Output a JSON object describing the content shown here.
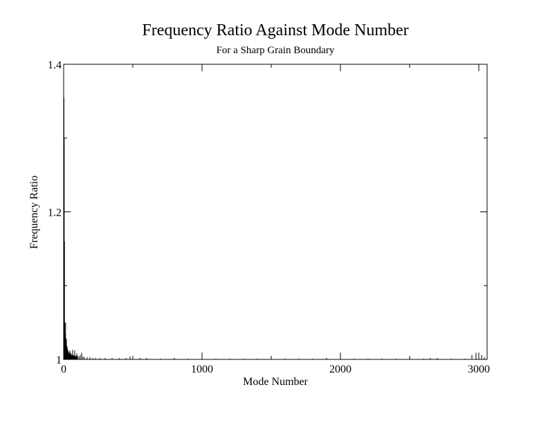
{
  "chart_data": {
    "type": "bar",
    "title": "Frequency Ratio Against Mode Number",
    "subtitle": "For a Sharp Grain Boundary",
    "xlabel": "Mode Number",
    "ylabel": "Frequency Ratio",
    "xlim": [
      0,
      3060
    ],
    "ylim": [
      1,
      1.4
    ],
    "x_major_ticks": [
      0,
      1000,
      2000,
      3000
    ],
    "x_minor_ticks": [
      500,
      1500,
      2500
    ],
    "y_major_ticks": [
      1,
      1.2,
      1.4
    ],
    "y_minor_ticks": [
      1.1,
      1.3
    ],
    "x_tick_labels": [
      "0",
      "1000",
      "2000",
      "3000"
    ],
    "y_tick_labels": [
      "1",
      "1.2",
      "1.4"
    ],
    "grid": false,
    "legend": "none",
    "bar_color": "#000000",
    "series": [
      {
        "x": [
          2,
          4,
          6,
          8,
          10,
          12,
          14,
          16,
          18,
          20,
          24,
          28,
          32,
          36,
          40,
          45,
          50,
          55,
          60,
          65,
          70,
          75,
          80,
          85,
          90,
          95,
          100,
          110,
          120,
          130,
          140,
          150,
          170,
          190,
          210,
          230,
          260,
          300,
          350,
          400,
          450,
          480,
          500,
          550,
          600,
          700,
          800,
          900,
          1000,
          1100,
          1200,
          1300,
          1400,
          1500,
          1600,
          1700,
          1800,
          1900,
          2000,
          2100,
          2200,
          2300,
          2400,
          2500,
          2600,
          2650,
          2700,
          2800,
          2900,
          2950,
          2980,
          3000,
          3020,
          3040
        ],
        "y": [
          1.355,
          1.3,
          1.16,
          1.05,
          1.035,
          1.03,
          1.05,
          1.025,
          1.02,
          1.028,
          1.018,
          1.015,
          1.012,
          1.01,
          1.008,
          1.012,
          1.009,
          1.007,
          1.006,
          1.013,
          1.006,
          1.005,
          1.012,
          1.005,
          1.004,
          1.008,
          1.005,
          1.004,
          1.006,
          1.009,
          1.004,
          1.003,
          1.003,
          1.003,
          1.002,
          1.002,
          1.002,
          1.002,
          1.002,
          1.002,
          1.002,
          1.004,
          1.002,
          1.002,
          1.002,
          1.001,
          1.002,
          1.001,
          1.002,
          1.001,
          1.001,
          1.001,
          1.001,
          1.001,
          1.001,
          1.001,
          1.001,
          1.002,
          1.001,
          1.001,
          1.001,
          1.001,
          1.001,
          1.002,
          1.001,
          1.002,
          1.002,
          1.001,
          1.001,
          1.006,
          1.009,
          1.004,
          1.006,
          1.003
        ]
      }
    ]
  }
}
